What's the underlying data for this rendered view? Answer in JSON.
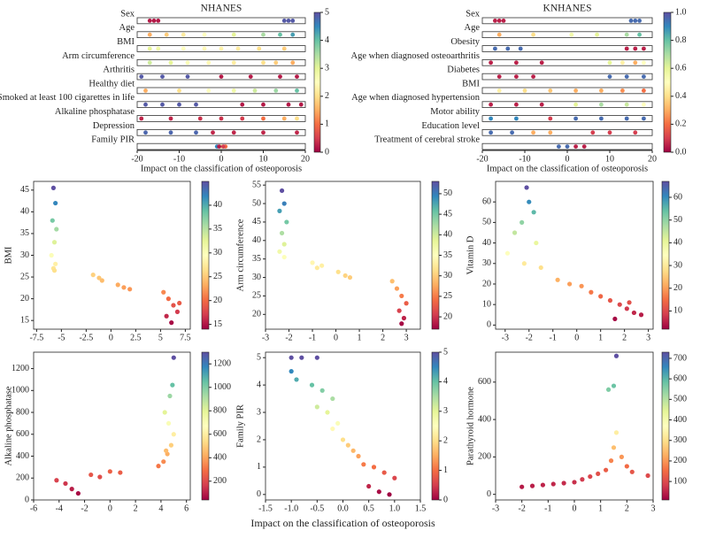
{
  "chart_data": [
    {
      "type": "summary",
      "title": "NHANES",
      "xlabel": "Impact on the classification of osteoporosis",
      "colormap": "Spectral",
      "xlim": [
        -20,
        20
      ],
      "xticks": [
        -20,
        -10,
        0,
        10,
        20
      ],
      "clim": [
        0,
        5
      ],
      "cticks": [
        0,
        1,
        2,
        3,
        4,
        5
      ],
      "rows": [
        {
          "name": "Sex",
          "x": [
            -17,
            -16,
            -15,
            15,
            16,
            17
          ],
          "values": [
            0.2,
            0.2,
            0.2,
            4.9,
            4.9,
            4.9
          ]
        },
        {
          "name": "Age",
          "x": [
            -17,
            -13,
            -9,
            -4,
            3,
            10,
            14,
            17
          ],
          "values": [
            1.5,
            1.8,
            2.2,
            2.5,
            3.0,
            3.5,
            4.0,
            4.3
          ]
        },
        {
          "name": "BMI",
          "x": [
            -17,
            -15,
            -9,
            -4,
            0,
            4,
            9,
            15
          ],
          "values": [
            3.0,
            2.8,
            2.5,
            2.4,
            2.3,
            2.2,
            2.0,
            1.8
          ]
        },
        {
          "name": "Arm circumference",
          "x": [
            -17,
            -12,
            -8,
            -3,
            3,
            10,
            13,
            17
          ],
          "values": [
            3.2,
            3.0,
            2.6,
            2.4,
            2.2,
            2.0,
            1.8,
            1.5
          ]
        },
        {
          "name": "Arthritis",
          "x": [
            -19,
            -14,
            -8,
            0,
            7,
            14,
            18
          ],
          "values": [
            4.9,
            4.9,
            4.9,
            0.2,
            0.2,
            0.2,
            0.2
          ]
        },
        {
          "name": "Healthy diet",
          "x": [
            -18,
            -10,
            -3,
            3,
            8,
            13,
            18
          ],
          "values": [
            1.5,
            2.0,
            2.5,
            2.8,
            3.2,
            3.6,
            4.0
          ]
        },
        {
          "name": "Smoked at least 100 cigarettes in life",
          "x": [
            -18,
            -14,
            -10,
            -6,
            5,
            10,
            16,
            19
          ],
          "values": [
            4.9,
            4.9,
            4.9,
            4.9,
            0.2,
            0.2,
            0.2,
            0.2
          ]
        },
        {
          "name": "Alkaline phosphatase",
          "x": [
            -19,
            -12,
            -5,
            0,
            5,
            10,
            15,
            18
          ],
          "values": [
            0.3,
            0.3,
            0.4,
            0.4,
            0.5,
            1.0,
            1.5,
            2.0
          ]
        },
        {
          "name": "Depression",
          "x": [
            -18,
            -12,
            -6,
            -2,
            3,
            10,
            18
          ],
          "values": [
            4.8,
            4.8,
            4.8,
            0.3,
            0.3,
            0.3,
            0.3
          ]
        },
        {
          "name": "Family PIR",
          "x": [
            -1,
            0,
            1,
            0.5,
            -0.5
          ],
          "values": [
            4.5,
            3.0,
            1.0,
            0.5,
            0.2
          ]
        }
      ]
    },
    {
      "type": "summary",
      "title": "KNHANES",
      "xlabel": "Impact on the classification of osteoporosis",
      "colormap": "Spectral",
      "xlim": [
        -20,
        20
      ],
      "xticks": [
        -20,
        -10,
        0,
        10,
        20
      ],
      "clim": [
        0,
        1
      ],
      "cticks": [
        {
          "value": 0,
          "label": "0.0"
        },
        {
          "value": 0.2,
          "label": "0.2"
        },
        {
          "value": 0.4,
          "label": "0.4"
        },
        {
          "value": 0.6,
          "label": "0.6"
        },
        {
          "value": 0.8,
          "label": "0.8"
        },
        {
          "value": 1,
          "label": "1.0"
        }
      ],
      "rows": [
        {
          "name": "Sex",
          "x": [
            -17,
            -16,
            -15,
            15,
            16,
            17
          ],
          "values": [
            0.05,
            0.05,
            0.05,
            0.95,
            0.95,
            0.95
          ]
        },
        {
          "name": "Age",
          "x": [
            -16,
            -8,
            1,
            7,
            14,
            17
          ],
          "values": [
            0.3,
            0.4,
            0.55,
            0.6,
            0.7,
            0.8
          ]
        },
        {
          "name": "Obesity",
          "x": [
            -17,
            -14,
            -11,
            14,
            16,
            18
          ],
          "values": [
            0.95,
            0.95,
            0.95,
            0.05,
            0.05,
            0.05
          ]
        },
        {
          "name": "Age when diagnosed osteoarthritis",
          "x": [
            -18,
            -12,
            -6,
            10,
            13,
            16,
            18
          ],
          "values": [
            0.05,
            0.05,
            0.05,
            0.6,
            0.45,
            0.3,
            0.5
          ]
        },
        {
          "name": "Diabetes",
          "x": [
            -16,
            -12,
            -8,
            10,
            14,
            18
          ],
          "values": [
            0.05,
            0.05,
            0.05,
            0.95,
            0.95,
            0.95
          ]
        },
        {
          "name": "BMI",
          "x": [
            -16,
            -10,
            -4,
            2,
            8,
            13,
            18
          ],
          "values": [
            0.45,
            0.4,
            0.35,
            0.3,
            0.3,
            0.25,
            0.2
          ]
        },
        {
          "name": "Age when diagnosed hypertension",
          "x": [
            -18,
            -12,
            -6,
            2,
            8,
            14,
            18
          ],
          "values": [
            0.05,
            0.05,
            0.05,
            0.6,
            0.7,
            0.65,
            0.5
          ]
        },
        {
          "name": "Motor ability",
          "x": [
            -18,
            -12,
            -4,
            2,
            8,
            14,
            18
          ],
          "values": [
            0.9,
            0.9,
            0.1,
            0.95,
            0.95,
            0.95,
            0.95
          ]
        },
        {
          "name": "Education level",
          "x": [
            -18,
            -13,
            -8,
            -4,
            6,
            10,
            16
          ],
          "values": [
            0.95,
            0.95,
            0.3,
            0.3,
            0.1,
            0.1,
            0.1
          ]
        },
        {
          "name": "Treatment of cerebral stroke",
          "x": [
            -2,
            0,
            2,
            4
          ],
          "values": [
            0.95,
            0.95,
            0.05,
            0.05
          ]
        }
      ]
    },
    {
      "type": "scatter",
      "ylabel": "BMI",
      "colormap": "Spectral",
      "xlim": [
        -7.8,
        8.0
      ],
      "xticks": [
        -7.5,
        -5,
        -2.5,
        0,
        2.5,
        5,
        7.5
      ],
      "ylim": [
        13,
        47
      ],
      "yticks": [
        15,
        20,
        25,
        30,
        35,
        40,
        45
      ],
      "clim": [
        14,
        45
      ],
      "cticks": [
        15,
        20,
        25,
        30,
        35,
        40
      ],
      "x": [
        -5.8,
        -5.6,
        -5.9,
        -5.5,
        -5.7,
        -6.0,
        -5.6,
        -5.8,
        -5.7,
        -1.8,
        -1.2,
        -0.9,
        0.7,
        1.3,
        1.9,
        5.3,
        5.8,
        6.3,
        6.7,
        5.6,
        6.1,
        6.9
      ],
      "y": [
        45.5,
        42,
        38,
        36,
        33,
        30,
        28,
        27,
        26.5,
        25.5,
        24.8,
        24.2,
        23.2,
        22.6,
        22.2,
        21.5,
        20,
        18.5,
        17,
        16,
        14.5,
        19
      ]
    },
    {
      "type": "scatter",
      "ylabel": "Arm circumference",
      "colormap": "Spectral",
      "xlim": [
        -3,
        3.6
      ],
      "xticks": [
        -3,
        -2,
        -1,
        0,
        1,
        2,
        3
      ],
      "ylim": [
        16,
        56
      ],
      "yticks": [
        20,
        25,
        30,
        35,
        40,
        45,
        50,
        55
      ],
      "clim": [
        17,
        53
      ],
      "cticks": [
        20,
        25,
        30,
        35,
        40,
        45,
        50
      ],
      "x": [
        -2.3,
        -2.2,
        -2.4,
        -2.1,
        -2.3,
        -2.2,
        -2.4,
        -2.2,
        -1.0,
        -0.6,
        -0.8,
        0.1,
        0.4,
        0.6,
        2.4,
        2.6,
        2.8,
        3.0,
        2.7,
        2.9,
        2.8
      ],
      "y": [
        53.5,
        50,
        48,
        45,
        42,
        39,
        37,
        35.5,
        34,
        33.2,
        32.6,
        31.5,
        30.5,
        30,
        29,
        27,
        25,
        23,
        21,
        19,
        17.5
      ]
    },
    {
      "type": "scatter",
      "ylabel": "Vitamin D",
      "colormap": "Spectral",
      "xlim": [
        -3.4,
        3.2
      ],
      "xticks": [
        -3,
        -2,
        -1,
        0,
        1,
        2,
        3
      ],
      "ylim": [
        -2,
        70
      ],
      "yticks": [
        0,
        10,
        20,
        30,
        40,
        50,
        60
      ],
      "clim": [
        2,
        67
      ],
      "cticks": [
        10,
        20,
        30,
        40,
        50,
        60
      ],
      "x": [
        -2.1,
        -2.0,
        -1.8,
        -2.3,
        -2.6,
        -1.7,
        -2.9,
        -2.2,
        -1.5,
        -0.8,
        -0.3,
        0.2,
        0.6,
        1.0,
        1.4,
        1.8,
        2.1,
        2.4,
        2.7,
        1.6,
        2.2
      ],
      "y": [
        67,
        60,
        55,
        50,
        45,
        40,
        35,
        30,
        28,
        22,
        20,
        19,
        16,
        14,
        12,
        10,
        8,
        6,
        5,
        3,
        11
      ]
    },
    {
      "type": "scatter",
      "ylabel": "Alkaline phosphatase",
      "colormap": "Spectral",
      "xlim": [
        -6,
        6.3
      ],
      "xticks": [
        -6,
        -4,
        -2,
        0,
        2,
        4,
        6
      ],
      "ylim": [
        0,
        1350
      ],
      "yticks": [
        0,
        200,
        400,
        600,
        800,
        1000,
        1200
      ],
      "clim": [
        40,
        1300
      ],
      "cticks": [
        200,
        400,
        600,
        800,
        1000,
        1200
      ],
      "x": [
        -4.2,
        -3.5,
        -3.0,
        -2.5,
        -1.5,
        -0.8,
        0,
        0.8,
        3.8,
        4.2,
        4.5,
        4.8,
        5.0,
        4.6,
        4.3,
        4.7,
        5.0,
        4.4,
        4.9
      ],
      "y": [
        180,
        150,
        100,
        60,
        230,
        210,
        260,
        250,
        310,
        350,
        420,
        500,
        600,
        700,
        800,
        950,
        1300,
        450,
        1050
      ]
    },
    {
      "type": "scatter",
      "ylabel": "Family PIR",
      "xlabel": "Impact on the classification of osteoporosis",
      "colormap": "Spectral",
      "xlim": [
        -1.5,
        1.5
      ],
      "xticks": [
        -1.5,
        {
          "value": -1,
          "label": "-1.0"
        },
        -0.5,
        {
          "value": 0,
          "label": "0.0"
        },
        0.5,
        {
          "value": 1,
          "label": "1.0"
        },
        1.5
      ],
      "ylim": [
        -0.2,
        5.2
      ],
      "yticks": [
        0,
        1,
        2,
        3,
        4,
        5
      ],
      "clim": [
        0,
        5
      ],
      "cticks": [
        0,
        1,
        2,
        3,
        4,
        5
      ],
      "x": [
        -1.0,
        -0.8,
        -0.5,
        -1.0,
        -0.9,
        -0.6,
        -0.4,
        -0.2,
        -0.5,
        -0.3,
        -0.1,
        -0.2,
        0.0,
        0.1,
        0.2,
        0.3,
        0.4,
        0.6,
        0.8,
        1.0,
        0.5,
        0.7,
        0.9
      ],
      "y": [
        5,
        5,
        5,
        4.5,
        4.2,
        4.0,
        3.8,
        3.5,
        3.2,
        3.0,
        2.6,
        2.4,
        2.0,
        1.8,
        1.6,
        1.4,
        1.1,
        1.0,
        0.8,
        0.6,
        0.3,
        0.1,
        0.0
      ]
    },
    {
      "type": "scatter",
      "ylabel": "Parathyroid hormone",
      "colormap": "Spectral",
      "xlim": [
        -3,
        3
      ],
      "xticks": [
        -3,
        -2,
        -1,
        0,
        1,
        2,
        3
      ],
      "ylim": [
        -30,
        760
      ],
      "yticks": [
        0,
        200,
        400,
        600
      ],
      "clim": [
        10,
        730
      ],
      "cticks": [
        100,
        200,
        300,
        400,
        500,
        600,
        700
      ],
      "x": [
        -2.0,
        -1.6,
        -1.2,
        -0.8,
        -0.4,
        0,
        0.3,
        0.6,
        0.9,
        1.2,
        1.4,
        1.5,
        1.6,
        1.8,
        2.0,
        2.2,
        1.3,
        1.5,
        1.6,
        2.8
      ],
      "y": [
        40,
        45,
        50,
        55,
        60,
        65,
        80,
        95,
        110,
        130,
        180,
        250,
        330,
        200,
        150,
        120,
        560,
        580,
        740,
        100
      ]
    }
  ]
}
